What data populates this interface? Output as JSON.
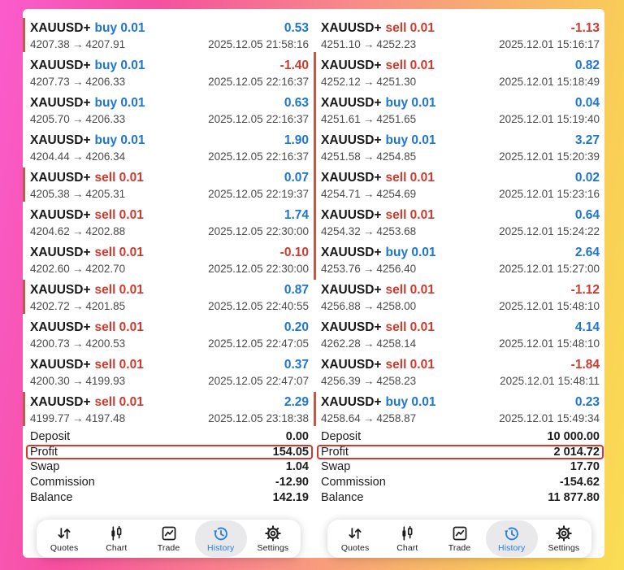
{
  "colors": {
    "buy_blue": "#1d76d2",
    "sell_red": "#ce3b2e",
    "marker_bar": "#bd5b47",
    "highlight_border": "#d9352a",
    "nav_active_blue": "#2680e3",
    "border_gradient": [
      "#fa5ccd",
      "#f6509f",
      "#f88d88",
      "#f8b36b",
      "#f9cf55"
    ]
  },
  "strings": {
    "arrow": "→"
  },
  "panels": [
    {
      "trades": [
        {
          "symbol": "XAUUSD+",
          "side": "buy",
          "volume": "0.01",
          "profit": "0.53",
          "open": "4207.38",
          "close": "4207.91",
          "time": "2025.12.05 21:58:16",
          "marker": true,
          "cont": false
        },
        {
          "symbol": "XAUUSD+",
          "side": "buy",
          "volume": "0.01",
          "profit": "-1.40",
          "open": "4207.73",
          "close": "4206.33",
          "time": "2025.12.05 22:16:37",
          "marker": false,
          "cont": false
        },
        {
          "symbol": "XAUUSD+",
          "side": "buy",
          "volume": "0.01",
          "profit": "0.63",
          "open": "4205.70",
          "close": "4206.33",
          "time": "2025.12.05 22:16:37",
          "marker": false,
          "cont": false
        },
        {
          "symbol": "XAUUSD+",
          "side": "buy",
          "volume": "0.01",
          "profit": "1.90",
          "open": "4204.44",
          "close": "4206.34",
          "time": "2025.12.05 22:16:37",
          "marker": false,
          "cont": false
        },
        {
          "symbol": "XAUUSD+",
          "side": "sell",
          "volume": "0.01",
          "profit": "0.07",
          "open": "4205.38",
          "close": "4205.31",
          "time": "2025.12.05 22:19:37",
          "marker": true,
          "cont": false
        },
        {
          "symbol": "XAUUSD+",
          "side": "sell",
          "volume": "0.01",
          "profit": "1.74",
          "open": "4204.62",
          "close": "4202.88",
          "time": "2025.12.05 22:30:00",
          "marker": false,
          "cont": false
        },
        {
          "symbol": "XAUUSD+",
          "side": "sell",
          "volume": "0.01",
          "profit": "-0.10",
          "open": "4202.60",
          "close": "4202.70",
          "time": "2025.12.05 22:30:00",
          "marker": false,
          "cont": false
        },
        {
          "symbol": "XAUUSD+",
          "side": "sell",
          "volume": "0.01",
          "profit": "0.87",
          "open": "4202.72",
          "close": "4201.85",
          "time": "2025.12.05 22:40:55",
          "marker": true,
          "cont": false
        },
        {
          "symbol": "XAUUSD+",
          "side": "sell",
          "volume": "0.01",
          "profit": "0.20",
          "open": "4200.73",
          "close": "4200.53",
          "time": "2025.12.05 22:47:05",
          "marker": false,
          "cont": false
        },
        {
          "symbol": "XAUUSD+",
          "side": "sell",
          "volume": "0.01",
          "profit": "0.37",
          "open": "4200.30",
          "close": "4199.93",
          "time": "2025.12.05 22:47:07",
          "marker": false,
          "cont": false
        },
        {
          "symbol": "XAUUSD+",
          "side": "sell",
          "volume": "0.01",
          "profit": "2.29",
          "open": "4199.77",
          "close": "4197.48",
          "time": "2025.12.05 23:18:38",
          "marker": true,
          "cont": false
        }
      ],
      "summary": [
        {
          "label": "Deposit",
          "value": "0.00",
          "highlight": false
        },
        {
          "label": "Profit",
          "value": "154.05",
          "highlight": true
        },
        {
          "label": "Swap",
          "value": "1.04",
          "highlight": false
        },
        {
          "label": "Commission",
          "value": "-12.90",
          "highlight": false
        },
        {
          "label": "Balance",
          "value": "142.19",
          "highlight": false
        }
      ]
    },
    {
      "trades": [
        {
          "symbol": "XAUUSD+",
          "side": "sell",
          "volume": "0.01",
          "profit": "-1.13",
          "open": "4251.10",
          "close": "4252.23",
          "time": "2025.12.01 15:16:17",
          "marker": false,
          "cont": false
        },
        {
          "symbol": "XAUUSD+",
          "side": "sell",
          "volume": "0.01",
          "profit": "0.82",
          "open": "4252.12",
          "close": "4251.30",
          "time": "2025.12.01 15:18:49",
          "marker": true,
          "cont": true
        },
        {
          "symbol": "XAUUSD+",
          "side": "buy",
          "volume": "0.01",
          "profit": "0.04",
          "open": "4251.61",
          "close": "4251.65",
          "time": "2025.12.01 15:19:40",
          "marker": true,
          "cont": true
        },
        {
          "symbol": "XAUUSD+",
          "side": "buy",
          "volume": "0.01",
          "profit": "3.27",
          "open": "4251.58",
          "close": "4254.85",
          "time": "2025.12.01 15:20:39",
          "marker": true,
          "cont": true
        },
        {
          "symbol": "XAUUSD+",
          "side": "sell",
          "volume": "0.01",
          "profit": "0.02",
          "open": "4254.71",
          "close": "4254.69",
          "time": "2025.12.01 15:23:16",
          "marker": true,
          "cont": true
        },
        {
          "symbol": "XAUUSD+",
          "side": "sell",
          "volume": "0.01",
          "profit": "0.64",
          "open": "4254.32",
          "close": "4253.68",
          "time": "2025.12.01 15:24:22",
          "marker": true,
          "cont": true
        },
        {
          "symbol": "XAUUSD+",
          "side": "buy",
          "volume": "0.01",
          "profit": "2.64",
          "open": "4253.76",
          "close": "4256.40",
          "time": "2025.12.01 15:27:00",
          "marker": true,
          "cont": true
        },
        {
          "symbol": "XAUUSD+",
          "side": "sell",
          "volume": "0.01",
          "profit": "-1.12",
          "open": "4256.88",
          "close": "4258.00",
          "time": "2025.12.01 15:48:10",
          "marker": false,
          "cont": false
        },
        {
          "symbol": "XAUUSD+",
          "side": "sell",
          "volume": "0.01",
          "profit": "4.14",
          "open": "4262.28",
          "close": "4258.14",
          "time": "2025.12.01 15:48:10",
          "marker": false,
          "cont": false
        },
        {
          "symbol": "XAUUSD+",
          "side": "sell",
          "volume": "0.01",
          "profit": "-1.84",
          "open": "4256.39",
          "close": "4258.23",
          "time": "2025.12.01 15:48:11",
          "marker": false,
          "cont": false
        },
        {
          "symbol": "XAUUSD+",
          "side": "buy",
          "volume": "0.01",
          "profit": "0.23",
          "open": "4258.64",
          "close": "4258.87",
          "time": "2025.12.01 15:49:34",
          "marker": true,
          "cont": false
        }
      ],
      "summary": [
        {
          "label": "Deposit",
          "value": "10 000.00",
          "highlight": false
        },
        {
          "label": "Profit",
          "value": "2 014.72",
          "highlight": true
        },
        {
          "label": "Swap",
          "value": "17.70",
          "highlight": false
        },
        {
          "label": "Commission",
          "value": "-154.62",
          "highlight": false
        },
        {
          "label": "Balance",
          "value": "11 877.80",
          "highlight": false
        }
      ]
    }
  ],
  "nav": {
    "active_index": 3,
    "items": [
      {
        "label": "Quotes",
        "icon": "quotes-icon"
      },
      {
        "label": "Chart",
        "icon": "chart-icon"
      },
      {
        "label": "Trade",
        "icon": "trade-icon"
      },
      {
        "label": "History",
        "icon": "history-icon"
      },
      {
        "label": "Settings",
        "icon": "settings-icon"
      }
    ]
  }
}
